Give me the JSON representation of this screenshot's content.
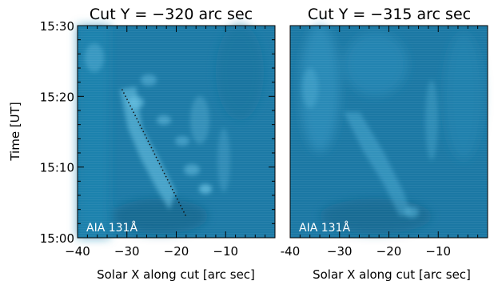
{
  "chart_data": [
    {
      "type": "heatmap",
      "title": "Cut Y = −320 arc sec",
      "xlabel": "Solar X along cut [arc sec]",
      "ylabel": "Time [UT]",
      "xlim": [
        -40,
        0
      ],
      "ylim": [
        "15:00",
        "15:30"
      ],
      "x_ticks": [
        "−40",
        "−30",
        "−20",
        "−10"
      ],
      "x_tick_values": [
        -40,
        -30,
        -20,
        -10
      ],
      "y_ticks": [
        "15:00",
        "15:10",
        "15:20",
        "15:30"
      ],
      "annotation": "AIA 131Å",
      "colormap": [
        "#0f5f86",
        "#2b8fbd",
        "#5ab8de"
      ],
      "overlay_line": {
        "style": "dotted",
        "x": [
          -31,
          -18
        ],
        "y": [
          "15:21",
          "15:03"
        ]
      }
    },
    {
      "type": "heatmap",
      "title": "Cut Y = −315 arc sec",
      "xlabel": "Solar X along cut [arc sec]",
      "ylabel": "",
      "xlim": [
        -40,
        0
      ],
      "ylim": [
        "15:00",
        "15:30"
      ],
      "x_ticks": [
        "-40",
        "−30",
        "−20",
        "−10"
      ],
      "x_tick_values": [
        -40,
        -30,
        -20,
        -10
      ],
      "y_ticks": [],
      "annotation": "AIA 131Å",
      "colormap": [
        "#0f5f86",
        "#2b8fbd",
        "#5ab8de"
      ]
    }
  ]
}
